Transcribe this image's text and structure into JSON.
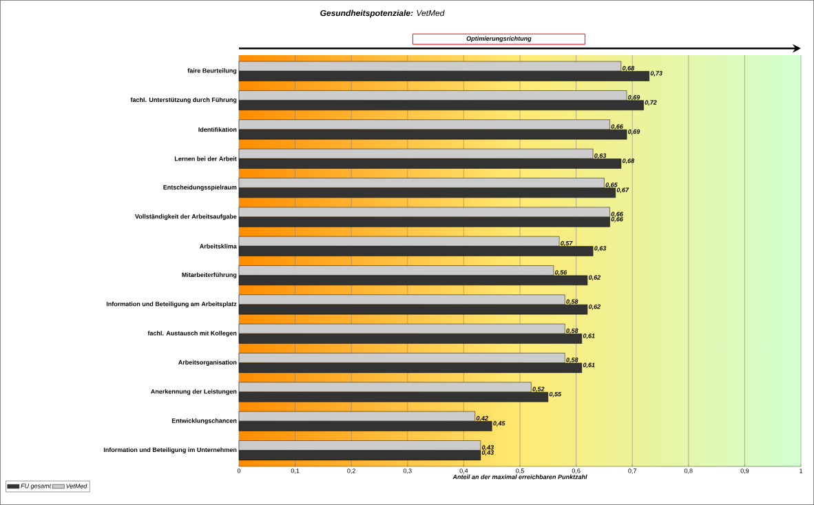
{
  "chart_data": {
    "type": "bar",
    "orientation": "horizontal",
    "title": "**Gesundheitspotenziale:** VetMed",
    "xlabel": "Anteil an der maximal erreichbaren Punktzahl",
    "categories": [
      "faire Beurteilung",
      "fachl. Unterstützung durch Führung",
      "Identifikation",
      "Lernen bei der Arbeit",
      "Entscheidungsspielraum",
      "Vollständigkeit der Arbeitsaufgabe",
      "Arbeitsklima",
      "Mitarbeiterführung",
      "Information und Beteiligung am Arbeitsplatz",
      "fachl. Austausch mit Kollegen",
      "Arbeitsorganisation",
      "Anerkennung der Leistungen",
      "Entwicklungschancen",
      "Information und Beteiligung im Unternehmen"
    ],
    "series": [
      {
        "name": "FU gesamt",
        "color": "#333333",
        "values": [
          0.73,
          0.72,
          0.69,
          0.68,
          0.67,
          0.66,
          0.63,
          0.62,
          0.62,
          0.61,
          0.61,
          0.55,
          0.45,
          0.43
        ],
        "value_labels": [
          "0,73",
          "0,72",
          "0,69",
          "0,68",
          "0,67",
          "0,66",
          "0,63",
          "0,62",
          "0,62",
          "0,61",
          "0,61",
          "0,55",
          "0,45",
          "0,43"
        ]
      },
      {
        "name": "VetMed",
        "color": "#cccccc",
        "values": [
          0.68,
          0.69,
          0.66,
          0.63,
          0.65,
          0.66,
          0.57,
          0.56,
          0.58,
          0.58,
          0.58,
          0.52,
          0.42,
          0.43
        ],
        "value_labels": [
          "0,68",
          "0,69",
          "0,66",
          "0,63",
          "0,65",
          "0,66",
          "0,57",
          "0,56",
          "0,58",
          "0,58",
          "0,58",
          "0,52",
          "0,42",
          "0,43"
        ]
      }
    ],
    "xlim": [
      0,
      1
    ],
    "xticks": [
      0,
      {
        "value": 0.1,
        "label": "0,1"
      },
      {
        "value": 0.2,
        "label": "0,2"
      },
      {
        "value": 0.3,
        "label": "0,3"
      },
      {
        "value": 0.4,
        "label": "0,4"
      },
      {
        "value": 0.5,
        "label": "0,5"
      },
      {
        "value": 0.6,
        "label": "0,6"
      },
      {
        "value": 0.7,
        "label": "0,7"
      },
      {
        "value": 0.8,
        "label": "0,8"
      },
      {
        "value": 0.9,
        "label": "0,9"
      },
      1
    ],
    "grid": "x",
    "legend": "bottom left",
    "annotations": [
      "Optimierungsrichtung"
    ]
  }
}
